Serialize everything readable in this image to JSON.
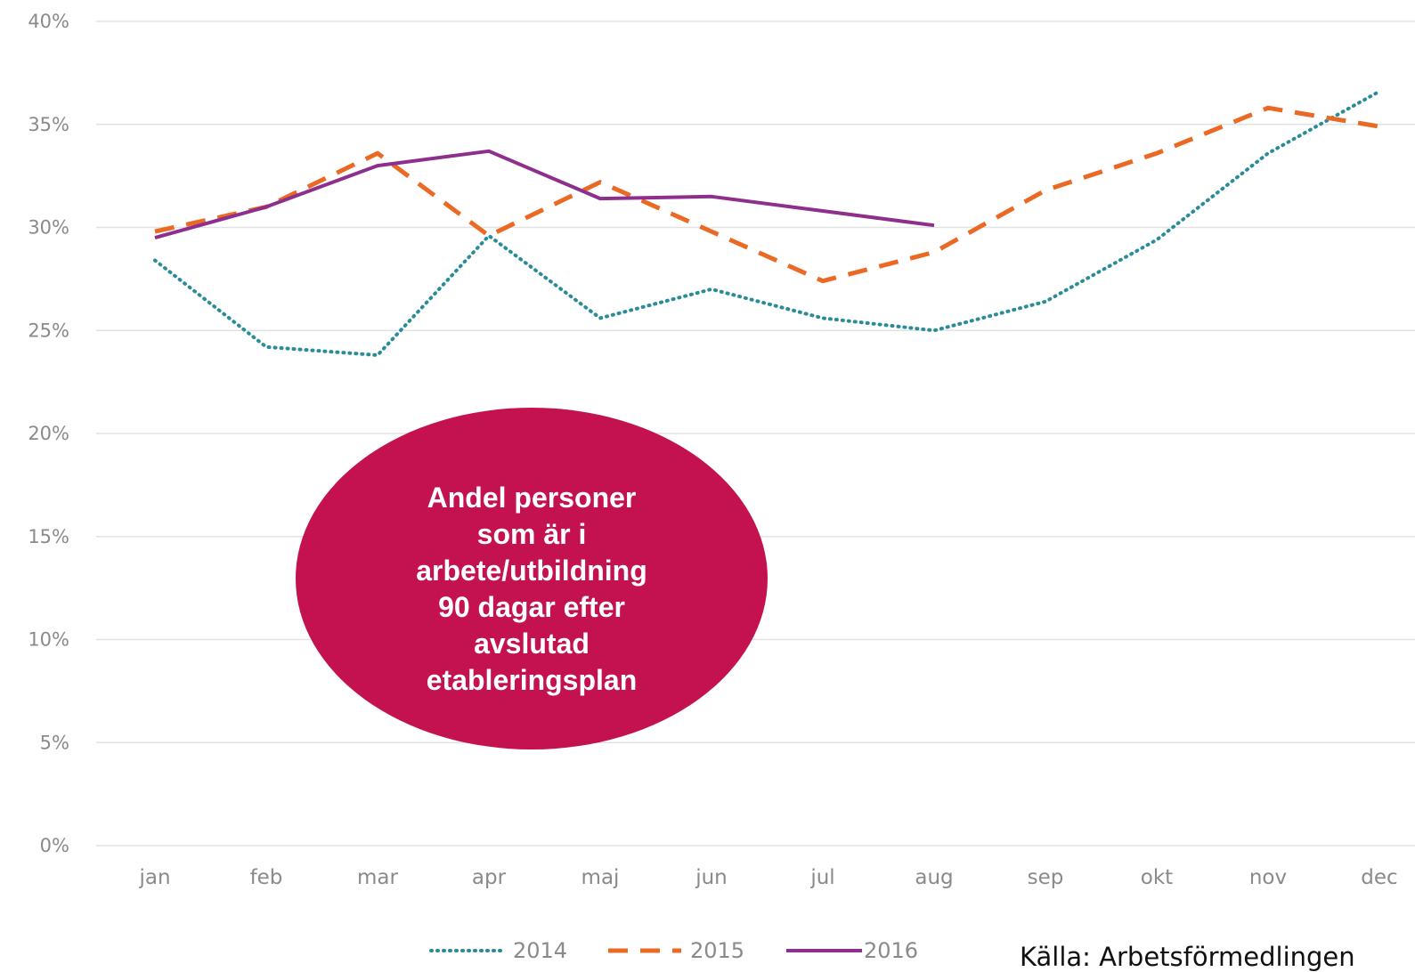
{
  "chart_data": {
    "type": "line",
    "title": "",
    "xlabel": "",
    "ylabel": "",
    "ylim": [
      0,
      40
    ],
    "y_ticks": [
      "0%",
      "5%",
      "10%",
      "15%",
      "20%",
      "25%",
      "30%",
      "35%",
      "40%"
    ],
    "categories": [
      "jan",
      "feb",
      "mar",
      "apr",
      "maj",
      "jun",
      "jul",
      "aug",
      "sep",
      "okt",
      "nov",
      "dec"
    ],
    "grid": true,
    "legend_position": "bottom",
    "series": [
      {
        "name": "2014",
        "style": "dotted",
        "color": "#2a8c96",
        "values": [
          28.4,
          24.2,
          23.8,
          29.6,
          25.6,
          27.0,
          25.6,
          25.0,
          26.4,
          29.4,
          33.6,
          36.6
        ]
      },
      {
        "name": "2015",
        "style": "dashed",
        "color": "#ea6a25",
        "values": [
          29.8,
          31.0,
          33.6,
          29.6,
          32.2,
          29.8,
          27.4,
          28.8,
          31.8,
          33.6,
          35.8,
          34.9
        ]
      },
      {
        "name": "2016",
        "style": "solid",
        "color": "#8e2f8e",
        "values": [
          29.5,
          31.0,
          33.0,
          33.7,
          31.4,
          31.5,
          30.8,
          30.1,
          null,
          null,
          null,
          null
        ]
      }
    ],
    "annotation": {
      "lines": [
        "Andel personer",
        "som är i",
        "arbete/utbildning",
        "90 dagar efter",
        "avslutad",
        "etableringsplan"
      ],
      "color": "#c4114f"
    }
  },
  "source_text": "Källa: Arbetsförmedlingen"
}
